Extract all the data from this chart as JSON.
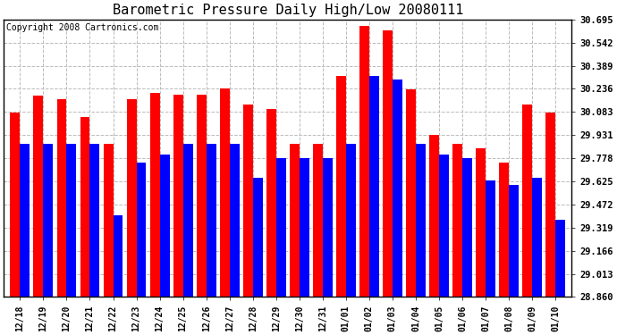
{
  "title": "Barometric Pressure Daily High/Low 20080111",
  "copyright": "Copyright 2008 Cartronics.com",
  "dates": [
    "12/18",
    "12/19",
    "12/20",
    "12/21",
    "12/22",
    "12/23",
    "12/24",
    "12/25",
    "12/26",
    "12/27",
    "12/28",
    "12/29",
    "12/30",
    "12/31",
    "01/01",
    "01/02",
    "01/03",
    "01/04",
    "01/05",
    "01/06",
    "01/07",
    "01/08",
    "01/09",
    "01/10"
  ],
  "highs": [
    30.08,
    30.19,
    30.17,
    30.05,
    29.87,
    30.17,
    30.21,
    30.2,
    30.2,
    30.24,
    30.13,
    30.1,
    29.87,
    29.87,
    30.32,
    30.65,
    30.62,
    30.23,
    29.93,
    29.87,
    29.84,
    29.75,
    30.13,
    30.08
  ],
  "lows": [
    29.87,
    29.87,
    29.87,
    29.87,
    29.4,
    29.75,
    29.8,
    29.87,
    29.87,
    29.87,
    29.65,
    29.78,
    29.78,
    29.78,
    29.87,
    30.32,
    30.3,
    29.87,
    29.8,
    29.78,
    29.63,
    29.6,
    29.65,
    29.37
  ],
  "bar_color_high": "#ff0000",
  "bar_color_low": "#0000ff",
  "bg_color": "#ffffff",
  "plot_bg_color": "#ffffff",
  "grid_color": "#bbbbbb",
  "yticks": [
    28.86,
    29.013,
    29.166,
    29.319,
    29.472,
    29.625,
    29.778,
    29.931,
    30.083,
    30.236,
    30.389,
    30.542,
    30.695
  ],
  "ymin": 28.86,
  "ymax": 30.695,
  "title_fontsize": 11,
  "copyright_fontsize": 7
}
